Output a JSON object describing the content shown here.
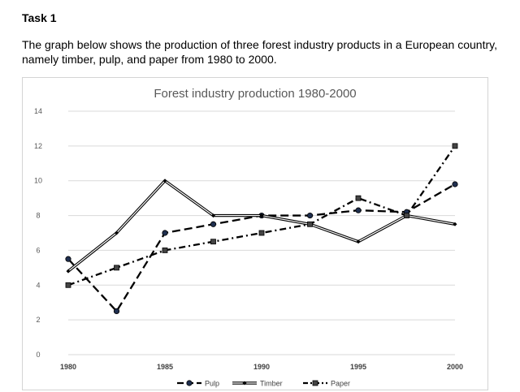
{
  "task_title": "Task 1",
  "prompt_text": "The graph below shows the production of three forest industry products in a European country, namely timber, pulp, and paper from 1980 to 2000.",
  "chart_data": {
    "type": "line",
    "title": "Forest industry production 1980-2000",
    "xlabel": "",
    "ylabel": "",
    "ylim": [
      0,
      14
    ],
    "xlim": [
      1980,
      2000
    ],
    "y_ticks": [
      "0",
      "2",
      "4",
      "6",
      "8",
      "10",
      "12",
      "14"
    ],
    "x_ticks": [
      "1980",
      "1985",
      "1990",
      "1995",
      "2000"
    ],
    "grid": true,
    "legend_position": "bottom",
    "series": [
      {
        "name": "Pulp",
        "style": "dashed",
        "marker": "circle",
        "color": "#000000",
        "x": [
          1980,
          1982.5,
          1985,
          1987.5,
          1990,
          1992.5,
          1995,
          1997.5,
          2000
        ],
        "values": [
          5.5,
          2.5,
          7.0,
          7.5,
          8.0,
          8.0,
          8.3,
          8.2,
          9.8
        ]
      },
      {
        "name": "Timber",
        "style": "double-solid",
        "marker": "diamond",
        "color": "#000000",
        "x": [
          1980,
          1982.5,
          1985,
          1987.5,
          1990,
          1992.5,
          1995,
          1997.5,
          2000
        ],
        "values": [
          4.8,
          7.0,
          10.0,
          8.0,
          8.0,
          7.5,
          6.5,
          8.0,
          7.5
        ]
      },
      {
        "name": "Paper",
        "style": "dash-dot",
        "marker": "square",
        "color": "#000000",
        "x": [
          1980,
          1982.5,
          1985,
          1987.5,
          1990,
          1992.5,
          1995,
          1997.5,
          2000
        ],
        "values": [
          4.0,
          5.0,
          6.0,
          6.5,
          7.0,
          7.5,
          9.0,
          8.0,
          12.0
        ]
      }
    ]
  }
}
